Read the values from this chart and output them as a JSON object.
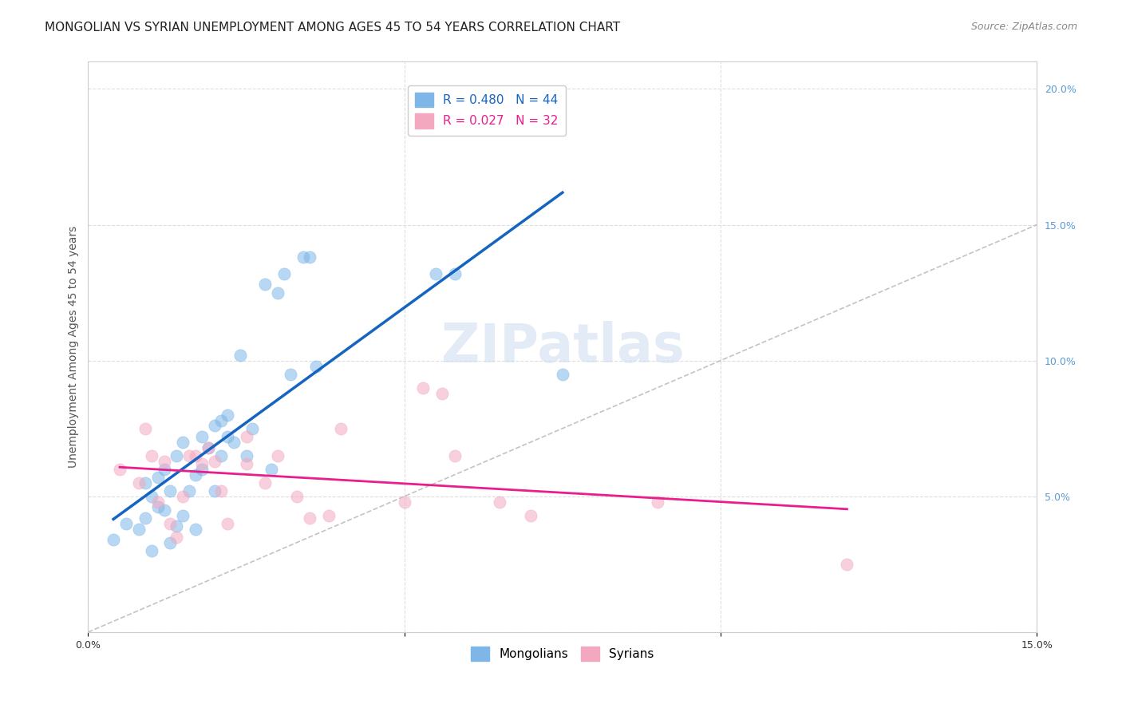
{
  "title": "MONGOLIAN VS SYRIAN UNEMPLOYMENT AMONG AGES 45 TO 54 YEARS CORRELATION CHART",
  "source": "Source: ZipAtlas.com",
  "xlabel_bottom": "",
  "ylabel": "Unemployment Among Ages 45 to 54 years",
  "xlim": [
    0.0,
    0.15
  ],
  "ylim": [
    0.0,
    0.21
  ],
  "x_ticks": [
    0.0,
    0.05,
    0.1,
    0.15
  ],
  "x_tick_labels": [
    "0.0%",
    "",
    "",
    "15.0%"
  ],
  "y_ticks_left": [],
  "y_ticks_right": [
    0.0,
    0.05,
    0.1,
    0.15,
    0.2
  ],
  "y_tick_right_labels": [
    "",
    "5.0%",
    "10.0%",
    "15.0%",
    "20.0%"
  ],
  "background_color": "#ffffff",
  "grid_color": "#dddddd",
  "mongolian_color": "#7EB6E8",
  "syrian_color": "#F4A8C0",
  "mongolian_line_color": "#1565C0",
  "syrian_line_color": "#E91E8C",
  "diagonal_color": "#AAAAAA",
  "mongolian_R": 0.48,
  "mongolian_N": 44,
  "syrian_R": 0.027,
  "syrian_N": 32,
  "legend_mongolian_label": "R = 0.480   N = 44",
  "legend_syrian_label": "R = 0.027   N = 32",
  "watermark": "ZIPatlas",
  "mongolian_x": [
    0.004,
    0.006,
    0.008,
    0.009,
    0.009,
    0.01,
    0.01,
    0.011,
    0.011,
    0.012,
    0.012,
    0.013,
    0.013,
    0.014,
    0.014,
    0.015,
    0.015,
    0.016,
    0.017,
    0.017,
    0.018,
    0.018,
    0.019,
    0.02,
    0.02,
    0.021,
    0.021,
    0.022,
    0.022,
    0.023,
    0.024,
    0.025,
    0.026,
    0.028,
    0.029,
    0.03,
    0.031,
    0.032,
    0.034,
    0.035,
    0.036,
    0.055,
    0.058,
    0.075
  ],
  "mongolian_y": [
    0.034,
    0.04,
    0.038,
    0.042,
    0.055,
    0.03,
    0.05,
    0.057,
    0.046,
    0.045,
    0.06,
    0.033,
    0.052,
    0.039,
    0.065,
    0.043,
    0.07,
    0.052,
    0.038,
    0.058,
    0.06,
    0.072,
    0.068,
    0.052,
    0.076,
    0.065,
    0.078,
    0.08,
    0.072,
    0.07,
    0.102,
    0.065,
    0.075,
    0.128,
    0.06,
    0.125,
    0.132,
    0.095,
    0.138,
    0.138,
    0.098,
    0.132,
    0.132,
    0.095
  ],
  "syrian_x": [
    0.005,
    0.008,
    0.009,
    0.01,
    0.011,
    0.012,
    0.013,
    0.014,
    0.015,
    0.016,
    0.017,
    0.018,
    0.019,
    0.02,
    0.021,
    0.022,
    0.025,
    0.025,
    0.028,
    0.03,
    0.033,
    0.035,
    0.038,
    0.04,
    0.05,
    0.053,
    0.056,
    0.058,
    0.065,
    0.07,
    0.09,
    0.12
  ],
  "syrian_y": [
    0.06,
    0.055,
    0.075,
    0.065,
    0.048,
    0.063,
    0.04,
    0.035,
    0.05,
    0.065,
    0.065,
    0.062,
    0.068,
    0.063,
    0.052,
    0.04,
    0.062,
    0.072,
    0.055,
    0.065,
    0.05,
    0.042,
    0.043,
    0.075,
    0.048,
    0.09,
    0.088,
    0.065,
    0.048,
    0.043,
    0.048,
    0.025
  ],
  "title_fontsize": 11,
  "source_fontsize": 9,
  "axis_label_fontsize": 10,
  "tick_fontsize": 9,
  "legend_fontsize": 11,
  "watermark_fontsize": 48,
  "scatter_size": 120,
  "scatter_alpha": 0.55,
  "legend_marker_color_mongolian": "#7EB6E8",
  "legend_marker_color_syrian": "#F4A8C0"
}
